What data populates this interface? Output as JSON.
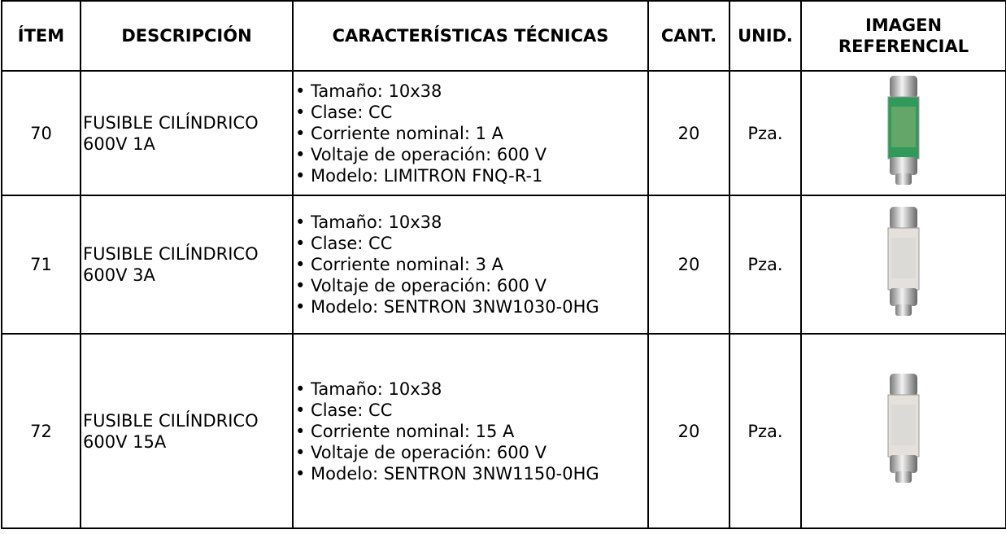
{
  "table": {
    "headers": [
      "ÍTEM",
      "DESCRIPCIÓN",
      "CARACTERÍSTICAS TÉCNICAS",
      "CANT.",
      "UNID.",
      "IMAGEN REFERENCIAL"
    ],
    "rows": [
      [
        "70",
        "FUSIBLE CILÍNDRICO 600V 1A",
        [
          "• Tamaño: 10x38",
          "• Clase: CC",
          "• Corriente nominal: 1 A",
          "• Voltaje de operación: 600 V",
          "• Modelo: LIMITRON FNQ-R-1"
        ],
        "20",
        "Pza."
      ],
      [
        "71",
        "FUSIBLE CILÍNDRICO 600V 3A",
        [
          "• Tamaño: 10x38",
          "• Clase: CC",
          "• Corriente nominal: 3 A",
          "• Voltaje de operación: 600 V",
          "• Modelo: SENTRON 3NW1030-0HG"
        ],
        "20",
        "Pza."
      ],
      [
        "72",
        "FUSIBLE CILÍNDRICO 600V 15A",
        [
          "• Tamaño: 10x38",
          "• Clase: CC",
          "• Corriente nominal: 15 A",
          "• Voltaje de operación: 600 V",
          "• Modelo: SENTRON 3NW1150-0HG"
        ],
        "20",
        "Pza."
      ]
    ]
  }
}
